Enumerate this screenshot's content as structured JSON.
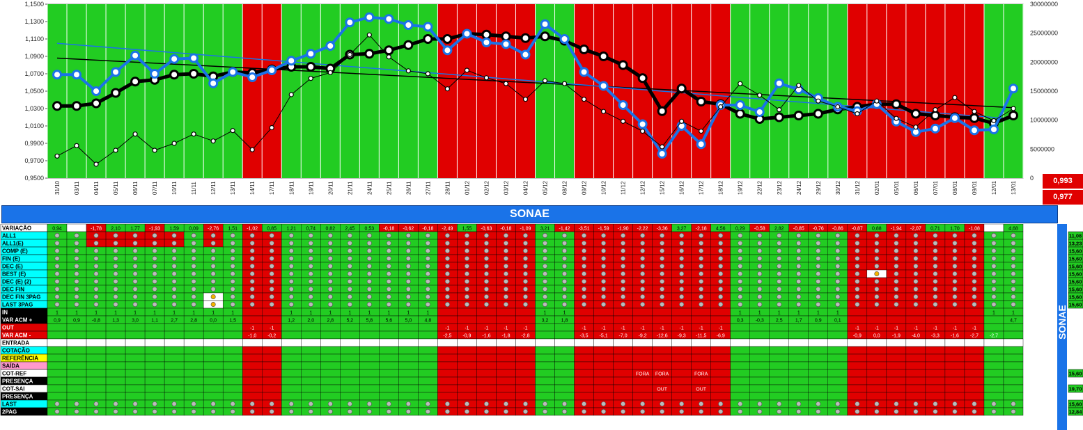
{
  "chart_data": {
    "type": "line",
    "x": [
      "31/10",
      "03/11",
      "04/11",
      "05/11",
      "06/11",
      "07/11",
      "10/11",
      "11/11",
      "12/11",
      "13/11",
      "14/11",
      "17/11",
      "18/11",
      "19/11",
      "20/11",
      "21/11",
      "24/11",
      "25/11",
      "26/11",
      "27/11",
      "28/11",
      "01/12",
      "02/12",
      "03/12",
      "04/12",
      "05/12",
      "08/12",
      "09/12",
      "10/12",
      "11/12",
      "12/12",
      "15/12",
      "16/12",
      "17/12",
      "18/12",
      "19/12",
      "22/12",
      "23/12",
      "24/12",
      "29/12",
      "30/12",
      "31/12",
      "02/01",
      "05/01",
      "06/01",
      "07/01",
      "08/01",
      "09/01",
      "12/01",
      "13/01"
    ],
    "regime": [
      "g",
      "g",
      "g",
      "g",
      "g",
      "g",
      "g",
      "g",
      "g",
      "g",
      "r",
      "r",
      "g",
      "g",
      "g",
      "g",
      "g",
      "g",
      "g",
      "g",
      "r",
      "r",
      "r",
      "r",
      "r",
      "g",
      "g",
      "r",
      "r",
      "r",
      "r",
      "r",
      "r",
      "r",
      "r",
      "g",
      "g",
      "g",
      "g",
      "g",
      "g",
      "r",
      "r",
      "r",
      "r",
      "r",
      "r",
      "r",
      "g",
      "g"
    ],
    "regime_colors": {
      "g": "#22cc22",
      "r": "#e00000"
    },
    "y_left_ticks": [
      "0,9500",
      "0,9700",
      "0,9900",
      "1,0100",
      "1,0300",
      "1,0500",
      "1,0700",
      "1,0900",
      "1,1100",
      "1,1300",
      "1,1500"
    ],
    "y_right_ticks": [
      "0",
      "5000000",
      "10000000",
      "15000000",
      "20000000",
      "25000000",
      "30000000"
    ],
    "ylim": [
      0.95,
      1.15
    ],
    "y2lim": [
      0,
      30000000
    ],
    "series": [
      {
        "values": [
          1.033,
          1.033,
          1.036,
          1.048,
          1.061,
          1.063,
          1.069,
          1.07,
          1.067,
          1.072,
          1.071,
          1.075,
          1.078,
          1.078,
          1.076,
          1.092,
          1.093,
          1.097,
          1.103,
          1.11,
          1.11,
          1.116,
          1.115,
          1.113,
          1.111,
          1.113,
          1.108,
          1.098,
          1.09,
          1.08,
          1.065,
          1.027,
          1.053,
          1.038,
          1.035,
          1.024,
          1.018,
          1.02,
          1.022,
          1.024,
          1.029,
          1.032,
          1.035,
          1.035,
          1.024,
          1.022,
          1.02,
          1.019,
          1.013,
          1.022
        ],
        "color": "#000000",
        "axis": "left",
        "width": 5
      },
      {
        "values": [
          1.069,
          1.069,
          1.05,
          1.072,
          1.091,
          1.07,
          1.087,
          1.088,
          1.059,
          1.072,
          1.066,
          1.074,
          1.085,
          1.093,
          1.102,
          1.129,
          1.135,
          1.133,
          1.126,
          1.124,
          1.097,
          1.116,
          1.106,
          1.104,
          1.092,
          1.127,
          1.11,
          1.072,
          1.056,
          1.034,
          1.012,
          0.978,
          1.01,
          0.989,
          1.034,
          1.034,
          1.026,
          1.059,
          1.052,
          1.042,
          1.032,
          1.027,
          1.035,
          1.015,
          1.003,
          1.007,
          1.019,
          1.005,
          1.006,
          1.053
        ],
        "color": "#1a73e8",
        "axis": "left",
        "width": 4
      },
      {
        "values": [
          3800000,
          5600000,
          2400000,
          4800000,
          7600000,
          4800000,
          6000000,
          7600000,
          6400000,
          8200000,
          4900000,
          8700000,
          14400000,
          17200000,
          18200000,
          21300000,
          24700000,
          20900000,
          18500000,
          18000000,
          15400000,
          18600000,
          17300000,
          16300000,
          13600000,
          16800000,
          16300000,
          13600000,
          11500000,
          9800000,
          8100000,
          5400000,
          9800000,
          8100000,
          12300000,
          16300000,
          14300000,
          11800000,
          16000000,
          13300000,
          12300000,
          11100000,
          13300000,
          10300000,
          8800000,
          11800000,
          13900000,
          11500000,
          9900000,
          12000000
        ],
        "color": "#000000",
        "axis": "right",
        "width": 1
      }
    ],
    "trendlines": [
      {
        "from": [
          0,
          1.088
        ],
        "to": [
          49,
          1.031
        ],
        "color": "#000000"
      },
      {
        "from": [
          0,
          1.105
        ],
        "to": [
          49,
          1.018
        ],
        "color": "#1a73e8"
      }
    ]
  },
  "values_box": [
    "0,993",
    "0,977"
  ],
  "title": "SONAE",
  "grid": {
    "variacao_label": "VARIAÇÃO",
    "variacao": [
      "0,94",
      "",
      "-1,78",
      "2,10",
      "1,77",
      "-1,93",
      "1,59",
      "0,09",
      "-2,76",
      "1,51",
      "-1,02",
      "0,85",
      "1,21",
      "0,74",
      "0,82",
      "2,45",
      "0,53",
      "-0,18",
      "-0,62",
      "-0,18",
      "-2,49",
      "1,55",
      "-0,63",
      "-0,18",
      "-1,09",
      "3,21",
      "-1,42",
      "-3,51",
      "-1,59",
      "-1,90",
      "-2,22",
      "-3,36",
      "3,27",
      "-2,18",
      "4,56",
      "0,29",
      "-0,58",
      "2,82",
      "-0,85",
      "-0,76",
      "-0,86",
      "-0,87",
      "0,88",
      "-1,94",
      "-2,07",
      "0,71",
      "1,70",
      "-1,08",
      "",
      "4,68"
    ],
    "rows": [
      {
        "label": "ALL1",
        "bg": "#00ffff",
        "value": "11,08"
      },
      {
        "label": "ALL1(E)",
        "bg": "#00ffff",
        "value": "13,23"
      },
      {
        "label": "COMP (E)",
        "bg": "#00ffff",
        "value": "15,60"
      },
      {
        "label": "FIN (E)",
        "bg": "#00ffff",
        "value": "15,60"
      },
      {
        "label": "DEC (E)",
        "bg": "#00ffff",
        "value": "15,60"
      },
      {
        "label": "BEST (E)",
        "bg": "#00ffff",
        "value": "15,60"
      },
      {
        "label": "DEC (E) (2)",
        "bg": "#00ffff",
        "value": "15,60"
      },
      {
        "label": "DEC FIN",
        "bg": "#00ffff",
        "value": "15,60"
      },
      {
        "label": "DEC FIN 3PAG",
        "bg": "#00ffff",
        "value": "15,60"
      },
      {
        "label": "LAST 3PAG",
        "bg": "#00ffff",
        "value": "15,60"
      }
    ],
    "in_label": "IN",
    "var_acm_plus_label": "VAR ACM +",
    "out_label": "OUT",
    "var_acm_minus_label": "VAR ACM -",
    "var_acm_plus": [
      "0,9",
      "0,9",
      "-0,8",
      "1,3",
      "3,0",
      "1,1",
      "2,7",
      "2,8",
      "0,0",
      "1,5",
      "",
      "",
      "1,2",
      "2,0",
      "2,8",
      "5,2",
      "5,8",
      "5,6",
      "5,0",
      "4,8",
      "",
      "",
      "",
      "",
      "",
      "3,2",
      "1,8",
      "",
      "",
      "",
      "",
      "",
      "",
      "",
      "",
      "0,3",
      "-0,3",
      "2,5",
      "1,7",
      "0,9",
      "0,1",
      "",
      "",
      "",
      "",
      "",
      "",
      "",
      "",
      "4,7"
    ],
    "var_acm_minus": [
      "",
      "",
      "",
      "",
      "",
      "",
      "",
      "",
      "",
      "",
      "-1,0",
      "-0,2",
      "",
      "",
      "",
      "",
      "",
      "",
      "",
      "",
      "-2,5",
      "-0,9",
      "-1,6",
      "-1,8",
      "-2,8",
      "",
      "",
      "-3,5",
      "-5,1",
      "-7,0",
      "-9,2",
      "-12,6",
      "-9,3",
      "-11,5",
      "-6,9",
      "",
      "",
      "",
      "",
      "",
      "",
      "-0,9",
      "0,0",
      "-1,9",
      "-4,0",
      "-3,3",
      "-1,6",
      "-2,7",
      "-2,7",
      ""
    ],
    "entrada_label": "ENTRADA",
    "cotacao_label": "COTAÇÃO",
    "referencia_label": "REFERÊNCIA",
    "saida_label": "SAÍDA",
    "cotref_label": "COT-REF",
    "presenca_label": "PRESENÇA",
    "cotsai_label": "COT-SAI",
    "presenca2_label": "PRESENÇA",
    "last_label": "LAST",
    "pag2_label": "2PAG",
    "fora": "FORA",
    "out_word": "OUT",
    "cotref_value": "15,60",
    "cotsai_value": "19,70",
    "last_value": "15,60",
    "pag2_value": "12,84"
  }
}
